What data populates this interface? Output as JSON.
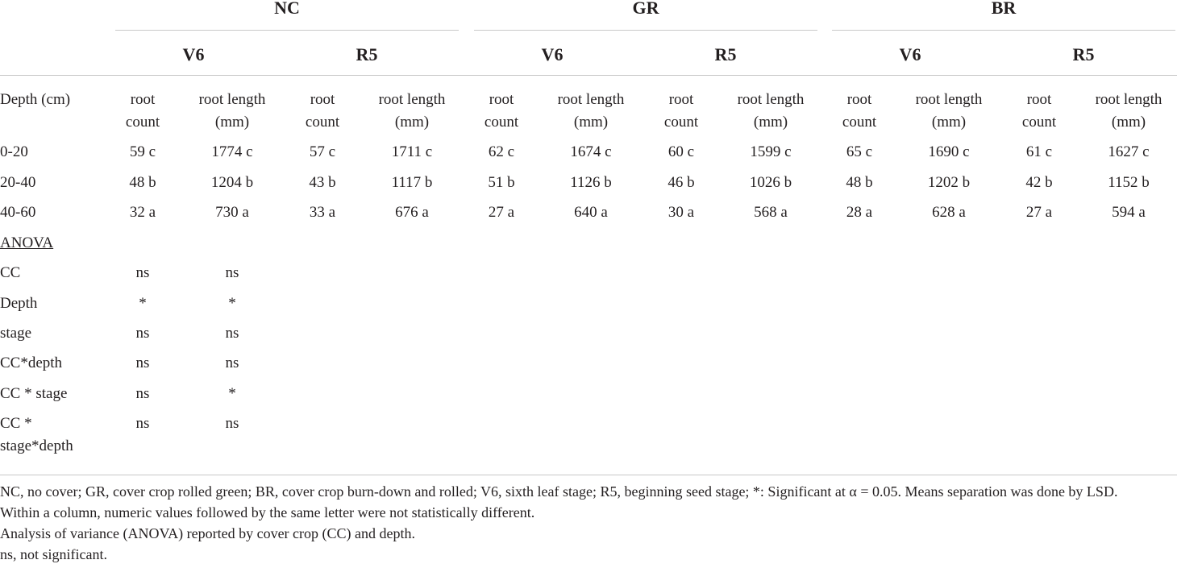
{
  "table": {
    "groups": [
      {
        "label": "NC",
        "stages": [
          "V6",
          "R5"
        ]
      },
      {
        "label": "GR",
        "stages": [
          "V6",
          "R5"
        ]
      },
      {
        "label": "BR",
        "stages": [
          "V6",
          "R5"
        ]
      }
    ],
    "row_header": "Depth (cm)",
    "measures": [
      "root count",
      "root length (mm)"
    ],
    "rows": [
      [
        "0-20",
        "59 c",
        "1774 c",
        "57 c",
        "1711 c",
        "62 c",
        "1674 c",
        "60 c",
        "1599 c",
        "65 c",
        "1690 c",
        "61 c",
        "1627 c"
      ],
      [
        "20-40",
        "48 b",
        "1204 b",
        "43 b",
        "1117 b",
        "51 b",
        "1126 b",
        "46 b",
        "1026 b",
        "48 b",
        "1202 b",
        "42 b",
        "1152 b"
      ],
      [
        "40-60",
        "32 a",
        "730 a",
        "33 a",
        "676 a",
        "27 a",
        "640 a",
        "30 a",
        "568 a",
        "28 a",
        "628 a",
        "27 a",
        "594 a"
      ]
    ],
    "anova_label": "ANOVA",
    "anova_rows": [
      [
        "CC",
        "ns",
        "ns"
      ],
      [
        "Depth",
        "*",
        "*"
      ],
      [
        "stage",
        "ns",
        "ns"
      ],
      [
        "CC*depth",
        "ns",
        "ns"
      ],
      [
        "CC * stage",
        "ns",
        "*"
      ],
      [
        "CC * stage*depth",
        "ns",
        "ns"
      ]
    ]
  },
  "footnotes": [
    "NC, no cover; GR, cover crop rolled green; BR, cover crop burn-down and rolled; V6, sixth leaf stage; R5, beginning seed stage; *: Significant at α = 0.05. Means separation was done by LSD.",
    "Within a column, numeric values followed by the same letter were not statistically different.",
    "Analysis of variance (ANOVA) reported by cover crop (CC) and depth.",
    "ns, not significant."
  ]
}
